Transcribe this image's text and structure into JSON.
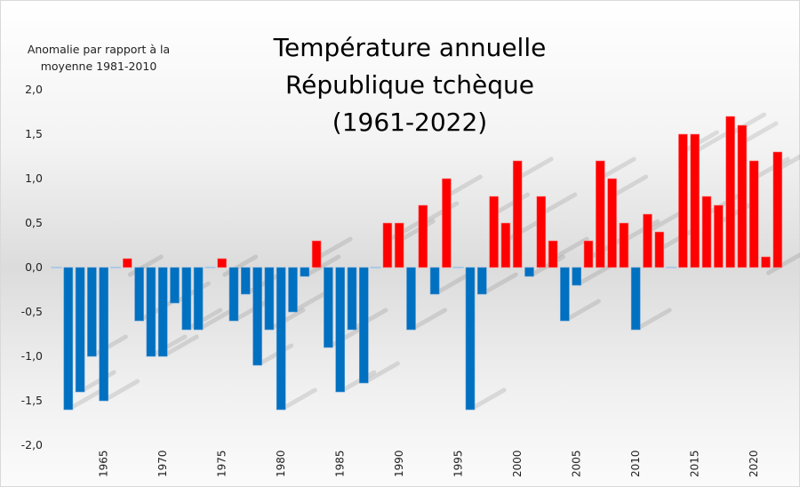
{
  "chart_data": {
    "type": "bar",
    "title": "Température annuelle République tchèque (1961-2022)",
    "title_lines": [
      "Température annuelle",
      "République tchèque",
      "(1961-2022)"
    ],
    "xlabel": "",
    "ylabel": "Anomalie par rapport à la moyenne 1981-2010",
    "ylabel_lines": [
      "Anomalie par rapport à la",
      "moyenne 1981-2010"
    ],
    "ylim": [
      -2.0,
      2.0
    ],
    "yticks": [
      2.0,
      1.5,
      1.0,
      0.5,
      0.0,
      -0.5,
      -1.0,
      -1.5,
      -2.0
    ],
    "ytick_labels": [
      "2,0",
      "1,5",
      "1,0",
      "0,5",
      "0,0",
      "-0,5",
      "-1,0",
      "-1,5",
      "-2,0"
    ],
    "xtick_labels": [
      "1965",
      "1970",
      "1975",
      "1980",
      "1985",
      "1990",
      "1995",
      "2000",
      "2005",
      "2010",
      "2015",
      "2020"
    ],
    "grid": false,
    "legend": "none",
    "colors": {
      "positive": "#ff0000",
      "negative": "#0070c0",
      "zero": "#9dc3e6"
    },
    "categories": [
      1961,
      1962,
      1963,
      1964,
      1965,
      1966,
      1967,
      1968,
      1969,
      1970,
      1971,
      1972,
      1973,
      1974,
      1975,
      1976,
      1977,
      1978,
      1979,
      1980,
      1981,
      1982,
      1983,
      1984,
      1985,
      1986,
      1987,
      1988,
      1989,
      1990,
      1991,
      1992,
      1993,
      1994,
      1995,
      1996,
      1997,
      1998,
      1999,
      2000,
      2001,
      2002,
      2003,
      2004,
      2005,
      2006,
      2007,
      2008,
      2009,
      2010,
      2011,
      2012,
      2013,
      2014,
      2015,
      2016,
      2017,
      2018,
      2019,
      2020,
      2021,
      2022
    ],
    "values": [
      0.0,
      -1.6,
      -1.4,
      -1.0,
      -1.5,
      0.0,
      0.1,
      -0.6,
      -1.0,
      -1.0,
      -0.4,
      -0.7,
      -0.7,
      0.0,
      0.1,
      -0.6,
      -0.3,
      -1.1,
      -0.7,
      -1.6,
      -0.5,
      -0.1,
      0.3,
      -0.9,
      -1.4,
      -0.7,
      -1.3,
      0.0,
      0.5,
      0.5,
      -0.7,
      0.7,
      -0.3,
      1.0,
      0.0,
      -1.6,
      -0.3,
      0.8,
      0.5,
      1.2,
      -0.1,
      0.8,
      0.3,
      -0.6,
      -0.2,
      0.3,
      1.2,
      1.0,
      0.5,
      -0.7,
      0.6,
      0.4,
      0.0,
      1.5,
      1.5,
      0.8,
      0.7,
      1.7,
      1.6,
      1.2,
      0.12,
      1.3
    ]
  }
}
